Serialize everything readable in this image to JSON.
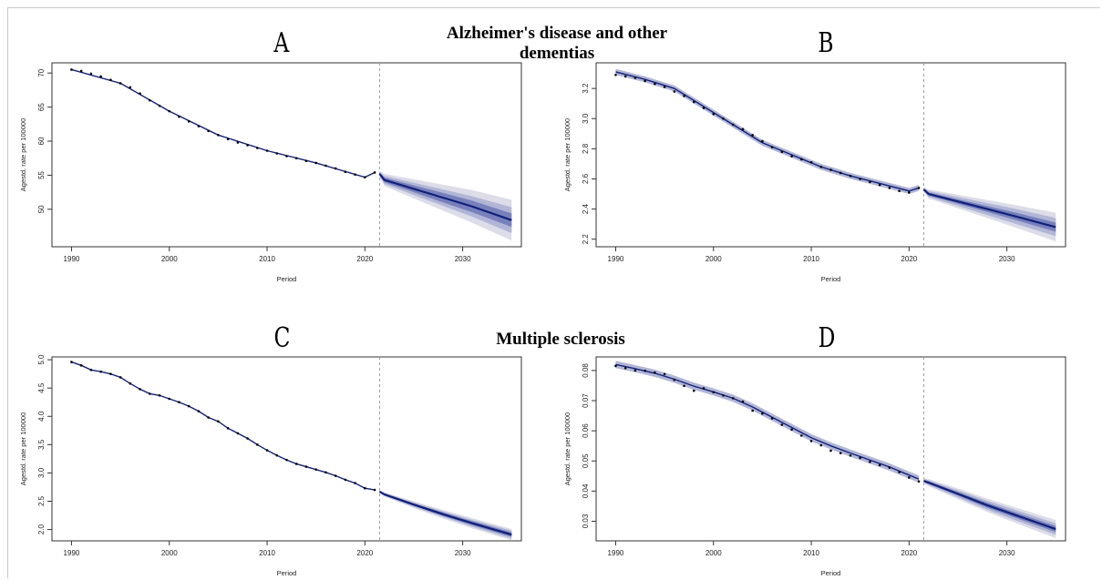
{
  "sections": {
    "top_title": "Alzheimer's disease and other dementias",
    "bottom_title": "Multiple sclerosis"
  },
  "colors": {
    "band_outer": "#dcdde8",
    "band_mid": "#b2b6d6",
    "band_inner": "#7880bc",
    "line": "#10207a",
    "points": "#000000",
    "divider": "#9a9a9a"
  },
  "chart_data": [
    {
      "panel": "A",
      "type": "line",
      "xlabel": "Period",
      "ylabel": "Agestd. rate per 100000",
      "xlim": [
        1988,
        2036
      ],
      "ylim": [
        44.5,
        71.5
      ],
      "x_ticks": [
        1990,
        2000,
        2010,
        2020,
        2030
      ],
      "y_ticks": [
        50,
        55,
        60,
        65,
        70
      ],
      "divider_x": 2021.5,
      "observed": {
        "x": [
          1990,
          1991,
          1992,
          1993,
          1994,
          1995,
          1996,
          1997,
          1998,
          1999,
          2000,
          2001,
          2002,
          2003,
          2004,
          2005,
          2006,
          2007,
          2008,
          2009,
          2010,
          2011,
          2012,
          2013,
          2014,
          2015,
          2016,
          2017,
          2018,
          2019,
          2020,
          2021
        ],
        "y": [
          70.5,
          70.3,
          69.9,
          69.5,
          69.0,
          68.5,
          67.9,
          67.0,
          66.0,
          65.2,
          64.4,
          63.6,
          62.9,
          62.2,
          61.5,
          60.9,
          60.3,
          59.8,
          59.4,
          59.0,
          58.6,
          58.2,
          57.8,
          57.5,
          57.1,
          56.8,
          56.4,
          56.0,
          55.5,
          55.1,
          54.7,
          55.4
        ]
      },
      "fitted": {
        "x": [
          1990,
          1995,
          2000,
          2005,
          2010,
          2015,
          2020,
          2021
        ],
        "y": [
          70.5,
          68.5,
          64.4,
          60.9,
          58.6,
          56.8,
          54.7,
          55.4
        ]
      },
      "projection": {
        "x": [
          2021.5,
          2022,
          2025,
          2028,
          2031,
          2035
        ],
        "mean": [
          55.2,
          54.3,
          53.0,
          51.7,
          50.4,
          48.4
        ],
        "inner": [
          0.2,
          0.35,
          0.5,
          0.7,
          0.85,
          1.0
        ],
        "mid": [
          0.3,
          0.6,
          0.9,
          1.2,
          1.5,
          1.9
        ],
        "outer": [
          0.5,
          0.9,
          1.4,
          1.9,
          2.4,
          3.0
        ]
      }
    },
    {
      "panel": "B",
      "type": "line",
      "xlabel": "Period",
      "ylabel": "Agestd. rate per 100000",
      "xlim": [
        1988,
        2036
      ],
      "ylim": [
        2.15,
        3.37
      ],
      "x_ticks": [
        1990,
        2000,
        2010,
        2020,
        2030
      ],
      "y_ticks": [
        2.2,
        2.4,
        2.6,
        2.8,
        3.0,
        3.2
      ],
      "divider_x": 2021.5,
      "observed": {
        "x": [
          1990,
          1991,
          1992,
          1993,
          1994,
          1995,
          1996,
          1997,
          1998,
          1999,
          2000,
          2001,
          2002,
          2003,
          2004,
          2005,
          2006,
          2007,
          2008,
          2009,
          2010,
          2011,
          2012,
          2013,
          2014,
          2015,
          2016,
          2017,
          2018,
          2019,
          2020,
          2021
        ],
        "y": [
          3.29,
          3.28,
          3.27,
          3.25,
          3.23,
          3.21,
          3.18,
          3.15,
          3.11,
          3.07,
          3.03,
          3.0,
          2.96,
          2.93,
          2.89,
          2.85,
          2.81,
          2.78,
          2.75,
          2.73,
          2.71,
          2.68,
          2.66,
          2.64,
          2.62,
          2.6,
          2.58,
          2.56,
          2.54,
          2.52,
          2.51,
          2.54
        ]
      },
      "fitted": {
        "x": [
          1990,
          1993,
          1996,
          1999,
          2002,
          2005,
          2008,
          2011,
          2014,
          2017,
          2020,
          2021
        ],
        "y": [
          3.31,
          3.26,
          3.2,
          3.08,
          2.96,
          2.84,
          2.76,
          2.68,
          2.62,
          2.57,
          2.52,
          2.54
        ]
      },
      "projection": {
        "x": [
          2021.5,
          2022,
          2025,
          2028,
          2031,
          2035
        ],
        "mean": [
          2.53,
          2.5,
          2.45,
          2.4,
          2.35,
          2.28
        ],
        "inner": [
          0.005,
          0.01,
          0.015,
          0.02,
          0.025,
          0.03
        ],
        "mid": [
          0.01,
          0.02,
          0.03,
          0.04,
          0.05,
          0.06
        ],
        "outer": [
          0.015,
          0.03,
          0.045,
          0.06,
          0.075,
          0.095
        ]
      },
      "fitted_band": 0.02
    },
    {
      "panel": "C",
      "type": "line",
      "xlabel": "Period",
      "ylabel": "Agestd. rate per 100000",
      "xlim": [
        1988,
        2036
      ],
      "ylim": [
        1.8,
        5.05
      ],
      "x_ticks": [
        1990,
        2000,
        2010,
        2020,
        2030
      ],
      "y_ticks": [
        2.0,
        2.5,
        3.0,
        3.5,
        4.0,
        4.5,
        5.0
      ],
      "divider_x": 2021.5,
      "observed": {
        "x": [
          1990,
          1991,
          1992,
          1993,
          1994,
          1995,
          1996,
          1997,
          1998,
          1999,
          2000,
          2001,
          2002,
          2003,
          2004,
          2005,
          2006,
          2007,
          2008,
          2009,
          2010,
          2011,
          2012,
          2013,
          2014,
          2015,
          2016,
          2017,
          2018,
          2019,
          2020,
          2021
        ],
        "y": [
          4.96,
          4.9,
          4.82,
          4.79,
          4.75,
          4.69,
          4.58,
          4.48,
          4.4,
          4.37,
          4.31,
          4.25,
          4.18,
          4.09,
          3.98,
          3.91,
          3.79,
          3.7,
          3.61,
          3.5,
          3.4,
          3.31,
          3.23,
          3.16,
          3.11,
          3.06,
          3.01,
          2.95,
          2.88,
          2.82,
          2.73,
          2.7
        ]
      },
      "fitted": {
        "x": [
          1990,
          1991,
          1992,
          1993,
          1994,
          1995,
          1996,
          1997,
          1998,
          1999,
          2000,
          2001,
          2002,
          2003,
          2004,
          2005,
          2006,
          2007,
          2008,
          2009,
          2010,
          2011,
          2012,
          2013,
          2014,
          2015,
          2016,
          2017,
          2018,
          2019,
          2020,
          2021
        ],
        "y": [
          4.96,
          4.9,
          4.82,
          4.79,
          4.75,
          4.69,
          4.58,
          4.48,
          4.4,
          4.37,
          4.31,
          4.25,
          4.18,
          4.09,
          3.98,
          3.91,
          3.79,
          3.7,
          3.61,
          3.5,
          3.4,
          3.31,
          3.23,
          3.16,
          3.11,
          3.06,
          3.01,
          2.95,
          2.88,
          2.82,
          2.73,
          2.7
        ]
      },
      "projection": {
        "x": [
          2021.5,
          2022,
          2025,
          2028,
          2031,
          2035
        ],
        "mean": [
          2.67,
          2.62,
          2.44,
          2.27,
          2.11,
          1.91
        ],
        "inner": [
          0.01,
          0.015,
          0.02,
          0.03,
          0.035,
          0.04
        ],
        "mid": [
          0.015,
          0.025,
          0.04,
          0.05,
          0.06,
          0.07
        ],
        "outer": [
          0.02,
          0.035,
          0.06,
          0.075,
          0.09,
          0.1
        ]
      }
    },
    {
      "panel": "D",
      "type": "line",
      "xlabel": "Period",
      "ylabel": "Agestd. rate per 100000",
      "xlim": [
        1988,
        2036
      ],
      "ylim": [
        0.0235,
        0.0845
      ],
      "x_ticks": [
        1990,
        2000,
        2010,
        2020,
        2030
      ],
      "y_ticks": [
        0.03,
        0.04,
        0.05,
        0.06,
        0.07,
        0.08
      ],
      "divider_x": 2021.5,
      "observed": {
        "x": [
          1990,
          1991,
          1992,
          1993,
          1994,
          1995,
          1996,
          1997,
          1998,
          1999,
          2000,
          2001,
          2002,
          2003,
          2004,
          2005,
          2006,
          2007,
          2008,
          2009,
          2010,
          2011,
          2012,
          2013,
          2014,
          2015,
          2016,
          2017,
          2018,
          2019,
          2020,
          2021
        ],
        "y": [
          0.0815,
          0.0808,
          0.08,
          0.0799,
          0.0793,
          0.0788,
          0.0769,
          0.0749,
          0.0733,
          0.0741,
          0.0728,
          0.0717,
          0.0708,
          0.0697,
          0.0667,
          0.0657,
          0.0641,
          0.062,
          0.0604,
          0.0584,
          0.0566,
          0.0552,
          0.0534,
          0.0526,
          0.0518,
          0.051,
          0.0497,
          0.0486,
          0.0478,
          0.0463,
          0.0445,
          0.0432
        ]
      },
      "fitted": {
        "x": [
          1990,
          1992,
          1994,
          1996,
          1998,
          2000,
          2002,
          2004,
          2006,
          2008,
          2010,
          2012,
          2014,
          2016,
          2018,
          2020,
          2021
        ],
        "y": [
          0.082,
          0.0806,
          0.0791,
          0.0771,
          0.0748,
          0.0729,
          0.0708,
          0.0679,
          0.0645,
          0.0611,
          0.0577,
          0.055,
          0.0526,
          0.0503,
          0.048,
          0.0453,
          0.044
        ]
      },
      "projection": {
        "x": [
          2021.5,
          2022,
          2025,
          2028,
          2031,
          2035
        ],
        "mean": [
          0.0434,
          0.0428,
          0.0391,
          0.0353,
          0.0319,
          0.0274
        ],
        "inner": [
          0.0003,
          0.0004,
          0.0006,
          0.0008,
          0.0009,
          0.001
        ],
        "mid": [
          0.0006,
          0.0008,
          0.0012,
          0.0015,
          0.0017,
          0.0019
        ],
        "outer": [
          0.0009,
          0.0012,
          0.0018,
          0.0022,
          0.0026,
          0.003
        ]
      },
      "fitted_band": 0.0012
    }
  ]
}
